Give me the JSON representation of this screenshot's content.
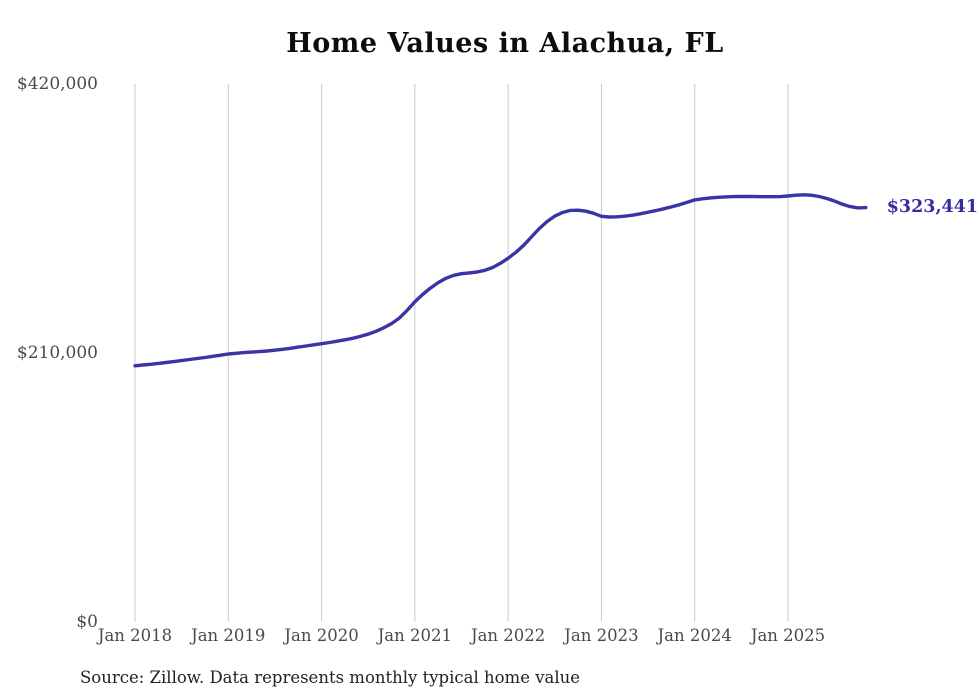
{
  "title": "Home Values in Alachua, FL",
  "source_note": "Source: Zillow. Data represents monthly typical home value",
  "end_label": "$323,441",
  "colors": {
    "line": "#3a34a4",
    "end_label_text": "#332da0",
    "grid": "#c9c9c9",
    "axis_text": "#4a4a4a",
    "title_text": "#0d0d0d",
    "source_text": "#222222",
    "background": "#ffffff"
  },
  "chart_data": {
    "type": "line",
    "title": "Home Values in Alachua, FL",
    "xlabel": "",
    "ylabel": "",
    "x_unit": "month",
    "x_start_label": "Jan 2018",
    "x_end_label": "Nov 2025",
    "ylim": [
      0,
      420000
    ],
    "y_ticks": [
      420000,
      210000,
      0
    ],
    "y_tick_labels": [
      "$420,000",
      "$210,000",
      "$0"
    ],
    "x_tick_month_indices": [
      0,
      12,
      24,
      36,
      48,
      60,
      72,
      84
    ],
    "x_tick_labels": [
      "Jan 2018",
      "Jan 2019",
      "Jan 2020",
      "Jan 2021",
      "Jan 2022",
      "Jan 2023",
      "Jan 2024",
      "Jan 2025"
    ],
    "grid": "vertical-only",
    "legend": "none",
    "end_value": 323441,
    "series": [
      {
        "name": "Typical home value",
        "start_month": "2018-01",
        "values": [
          199800,
          200400,
          201000,
          201700,
          202400,
          203100,
          203900,
          204700,
          205500,
          206300,
          207200,
          208100,
          209000,
          209600,
          210100,
          210500,
          210900,
          211400,
          212000,
          212700,
          213500,
          214400,
          215300,
          216200,
          217100,
          218000,
          219000,
          220100,
          221300,
          222800,
          224600,
          226800,
          229500,
          232800,
          237100,
          243100,
          249900,
          255500,
          260500,
          264800,
          268200,
          270500,
          271800,
          272400,
          273100,
          274400,
          276600,
          279900,
          283900,
          288500,
          294000,
          300500,
          307000,
          312500,
          316800,
          319600,
          321200,
          321400,
          320600,
          319000,
          316600,
          316100,
          316200,
          316700,
          317500,
          318600,
          319800,
          321100,
          322500,
          324000,
          325600,
          327500,
          329400,
          330300,
          331000,
          331500,
          331800,
          332000,
          332100,
          332100,
          332000,
          331900,
          331900,
          332000,
          332500,
          333100,
          333400,
          333100,
          332100,
          330500,
          328500,
          326000,
          324200,
          323200,
          323441
        ]
      }
    ]
  }
}
